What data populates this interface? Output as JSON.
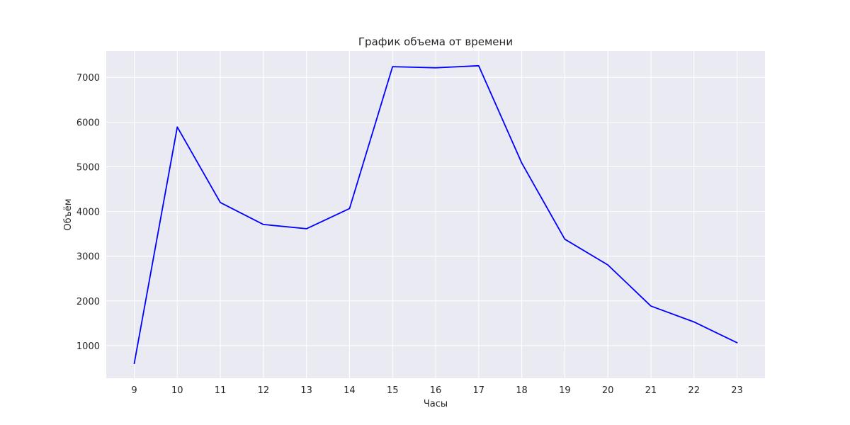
{
  "chart_data": {
    "type": "line",
    "title": "График объема от времени",
    "xlabel": "Часы",
    "ylabel": "Объём",
    "x": [
      9,
      10,
      11,
      12,
      13,
      14,
      15,
      16,
      17,
      18,
      19,
      20,
      21,
      22,
      23
    ],
    "series": [
      {
        "name": "",
        "values": [
          600,
          5890,
          4200,
          3710,
          3615,
          4065,
          7240,
          7215,
          7260,
          5085,
          3380,
          2805,
          1885,
          1530,
          1065
        ],
        "color": "#0000ff"
      }
    ],
    "xlim": [
      8.35,
      23.65
    ],
    "ylim": [
      270,
      7590
    ],
    "xticks": [
      "9",
      "10",
      "11",
      "12",
      "13",
      "14",
      "15",
      "16",
      "17",
      "18",
      "19",
      "20",
      "21",
      "22",
      "23"
    ],
    "yticks": [
      "1000",
      "2000",
      "3000",
      "4000",
      "5000",
      "6000",
      "7000"
    ],
    "grid": true,
    "style": {
      "plot_background": "#eaeaf2",
      "grid_color": "#ffffff",
      "line_color": "#0000ff",
      "text_color": "#262626"
    }
  }
}
